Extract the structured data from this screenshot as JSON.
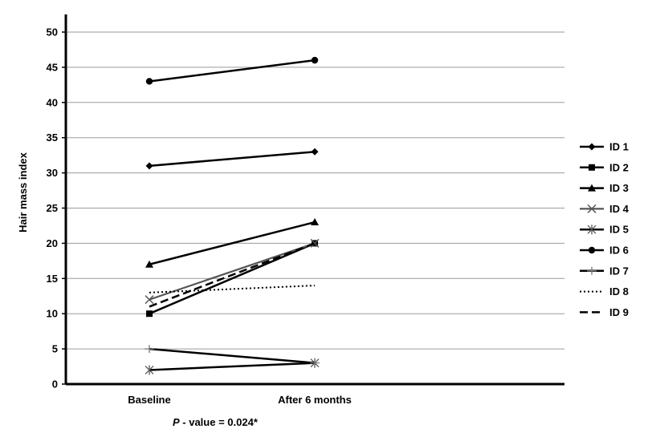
{
  "chart_data": {
    "type": "line",
    "ylabel": "Hair mass index",
    "categories": [
      "Baseline",
      "After 6 months"
    ],
    "ylim": [
      0,
      50
    ],
    "yticks": [
      0,
      5,
      10,
      15,
      20,
      25,
      30,
      35,
      40,
      45,
      50
    ],
    "grid": true,
    "legend_position": "right",
    "annotation": {
      "italic_part": "P",
      "rest": " - value = 0.024*"
    },
    "series": [
      {
        "name": "ID 1",
        "values": [
          31,
          33
        ],
        "marker": "diamond",
        "line": "solid"
      },
      {
        "name": "ID 2",
        "values": [
          10,
          20
        ],
        "marker": "square",
        "line": "solid"
      },
      {
        "name": "ID 3",
        "values": [
          17,
          23
        ],
        "marker": "triangle",
        "line": "solid"
      },
      {
        "name": "ID 4",
        "values": [
          12,
          20
        ],
        "marker": "x",
        "line": "solid-gray"
      },
      {
        "name": "ID 5",
        "values": [
          2,
          3
        ],
        "marker": "star",
        "line": "solid"
      },
      {
        "name": "ID 6",
        "values": [
          43,
          46
        ],
        "marker": "circle",
        "line": "solid"
      },
      {
        "name": "ID 7",
        "values": [
          5,
          3
        ],
        "marker": "plus",
        "line": "solid"
      },
      {
        "name": "ID 8",
        "values": [
          13,
          14
        ],
        "marker": "none",
        "line": "dotted"
      },
      {
        "name": "ID 9",
        "values": [
          11,
          20
        ],
        "marker": "none",
        "line": "dashed"
      }
    ]
  }
}
